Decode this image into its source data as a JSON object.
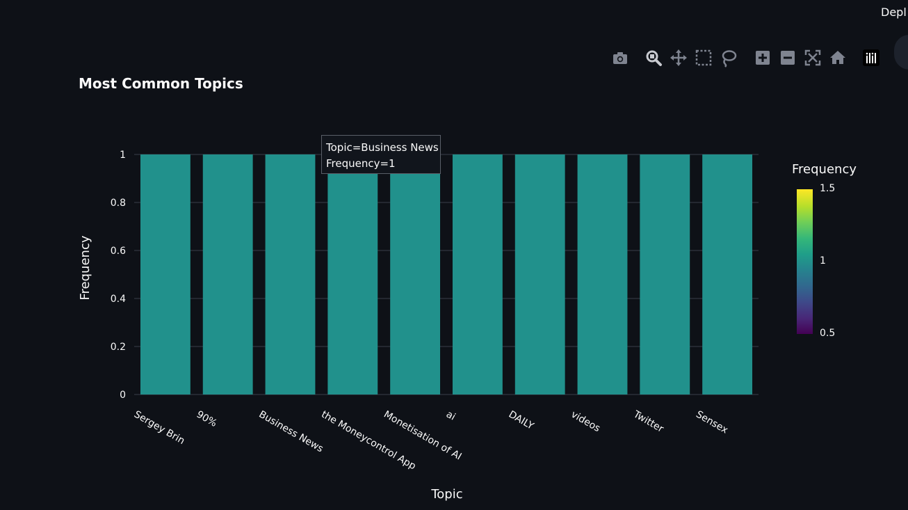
{
  "app": {
    "deploy_label": "Depl"
  },
  "modebar": {
    "buttons": [
      {
        "name": "download-plot-button",
        "icon": "camera-icon",
        "title": "Download plot as a png"
      },
      {
        "name": "zoom-button",
        "icon": "zoom-icon",
        "title": "Zoom"
      },
      {
        "name": "pan-button",
        "icon": "pan-icon",
        "title": "Pan"
      },
      {
        "name": "box-select-button",
        "icon": "box-select-icon",
        "title": "Box Select"
      },
      {
        "name": "lasso-select-button",
        "icon": "lasso-icon",
        "title": "Lasso Select"
      },
      {
        "name": "zoom-in-button",
        "icon": "zoom-in-icon",
        "title": "Zoom in"
      },
      {
        "name": "zoom-out-button",
        "icon": "zoom-out-icon",
        "title": "Zoom out"
      },
      {
        "name": "autoscale-button",
        "icon": "autoscale-icon",
        "title": "Autoscale"
      },
      {
        "name": "reset-axes-button",
        "icon": "home-icon",
        "title": "Reset axes"
      },
      {
        "name": "plotly-logo-button",
        "icon": "plotly-logo-icon",
        "title": "Produced with Plotly"
      }
    ],
    "icon_color": "#7f8490",
    "active_color": "#c8cad0"
  },
  "chart_data": {
    "type": "bar",
    "title": "Most Common Topics",
    "xlabel": "Topic",
    "ylabel": "Frequency",
    "categories": [
      "Sergey Brin",
      "90%",
      "Business News",
      "the Moneycontrol App",
      "Monetisation of AI",
      "ai",
      "DAILY",
      "videos",
      "Twitter",
      "Sensex"
    ],
    "values": [
      1,
      1,
      1,
      1,
      1,
      1,
      1,
      1,
      1,
      1
    ],
    "ylim": [
      0,
      1
    ],
    "yticks": [
      "0",
      "0.2",
      "0.4",
      "0.6",
      "0.8",
      "1"
    ],
    "ytick_values": [
      0,
      0.2,
      0.4,
      0.6,
      0.8,
      1
    ],
    "grid": true,
    "bar_color": "#21918c",
    "colorbar": {
      "title": "Frequency",
      "ticks": [
        "1.5",
        "1",
        "0.5"
      ],
      "tick_values": [
        1.5,
        1,
        0.5
      ],
      "range": [
        0.5,
        1.5
      ],
      "colorscale": "viridis"
    },
    "tooltip": {
      "line1": "Topic=Business News",
      "line2": "Frequency=1"
    }
  }
}
